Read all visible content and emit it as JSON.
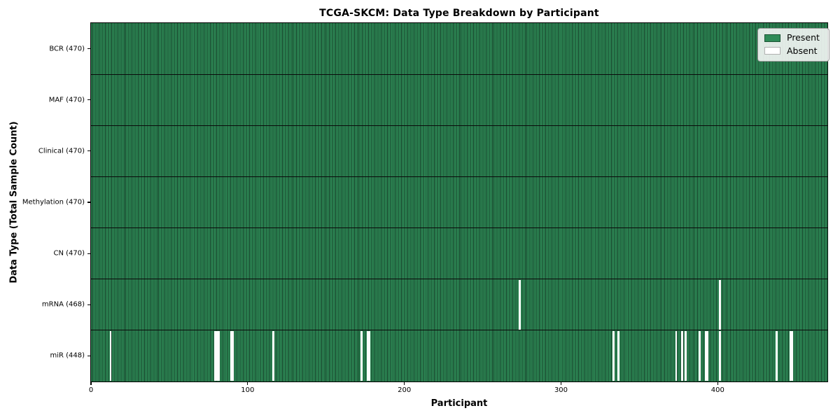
{
  "chart_data": {
    "type": "heatmap",
    "title": "TCGA-SKCM: Data Type Breakdown by Participant",
    "xlabel": "Participant",
    "ylabel": "Data Type (Total Sample Count)",
    "x_range": [
      0,
      470
    ],
    "x_ticks": [
      0,
      100,
      200,
      300,
      400
    ],
    "x_tick_labels": [
      "0",
      "100",
      "200",
      "300",
      "400"
    ],
    "grid": false,
    "legend_position": "upper right",
    "rows": [
      {
        "label": "BCR (470)",
        "data_type": "BCR",
        "present_count": 470,
        "absent_participants": []
      },
      {
        "label": "MAF (470)",
        "data_type": "MAF",
        "present_count": 470,
        "absent_participants": []
      },
      {
        "label": "Clinical (470)",
        "data_type": "Clinical",
        "present_count": 470,
        "absent_participants": []
      },
      {
        "label": "Methylation (470)",
        "data_type": "Methylation",
        "present_count": 470,
        "absent_participants": []
      },
      {
        "label": "CN (470)",
        "data_type": "CN",
        "present_count": 470,
        "absent_participants": []
      },
      {
        "label": "mRNA (468)",
        "data_type": "mRNA",
        "present_count": 468,
        "absent_participants": [
          273,
          401
        ]
      },
      {
        "label": "miR (448)",
        "data_type": "miR",
        "present_count": 448,
        "absent_participants": [
          12,
          79,
          80,
          81,
          89,
          90,
          116,
          172,
          176,
          177,
          333,
          336,
          373,
          377,
          379,
          388,
          392,
          393,
          401,
          437,
          446,
          447
        ]
      }
    ],
    "legend": [
      {
        "label": "Present",
        "color": "#2e8b57",
        "edge": "#1c5434"
      },
      {
        "label": "Absent",
        "color": "#ffffff",
        "edge": "#b0b0b0"
      }
    ],
    "colors": {
      "present": "#2e8b57",
      "bar_edge": "#17402a",
      "absent": "#fdfdfd",
      "row_separator": "#0a0a0a",
      "legend_background": "#fafbfa",
      "figure_background": "#ffffff"
    }
  }
}
